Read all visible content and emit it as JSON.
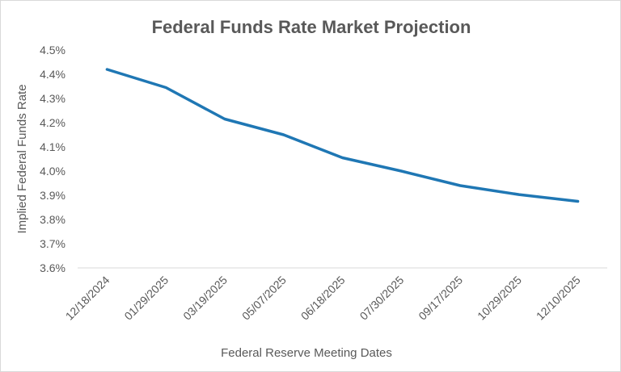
{
  "chart_data": {
    "type": "line",
    "title": "Federal Funds Rate Market Projection",
    "xlabel": "Federal Reserve Meeting Dates",
    "ylabel": "Implied Federal Funds Rate",
    "ylim": [
      3.6,
      4.5
    ],
    "y_ticks": [
      "3.6%",
      "3.7%",
      "3.8%",
      "3.9%",
      "4.0%",
      "4.1%",
      "4.2%",
      "4.3%",
      "4.4%",
      "4.5%"
    ],
    "categories": [
      "12/18/2024",
      "01/29/2025",
      "03/19/2025",
      "05/07/2025",
      "06/18/2025",
      "07/30/2025",
      "09/17/2025",
      "10/29/2025",
      "12/10/2025"
    ],
    "series": [
      {
        "values": [
          4.42,
          4.345,
          4.215,
          4.15,
          4.055,
          4.0,
          3.94,
          3.903,
          3.875
        ],
        "color": "#1f77b4"
      }
    ],
    "grid": false,
    "legend": "none"
  }
}
